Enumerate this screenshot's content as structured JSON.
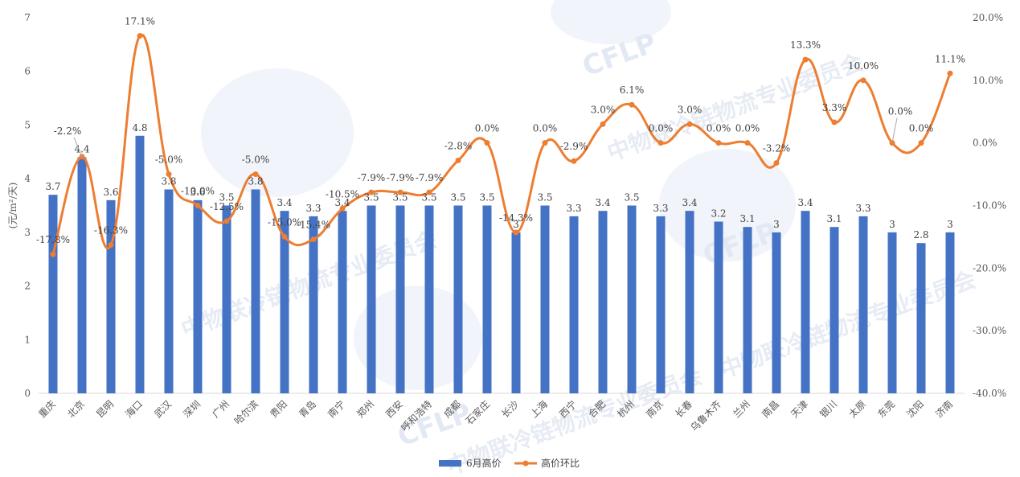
{
  "colors": {
    "bar": "#4472c4",
    "line": "#ed7d31",
    "grid": "#d9d9d9",
    "axis_text": "#595959",
    "watermark": "#c9d4ea"
  },
  "watermark": {
    "logo_text": "CFLP",
    "org_text": "中物联冷链物流专业委员会"
  },
  "chart_data": {
    "type": "bar",
    "title": "",
    "xlabel": "",
    "ylabel": "(元/m²/天)",
    "ylim": [
      0,
      7
    ],
    "y_ticks": [
      "0",
      "1",
      "2",
      "3",
      "4",
      "5",
      "6",
      "7"
    ],
    "y2lim": [
      -40,
      20
    ],
    "y2_ticks": [
      "-40.0%",
      "-30.0%",
      "-20.0%",
      "-10.0%",
      "0.0%",
      "10.0%",
      "20.0%"
    ],
    "categories": [
      "重庆",
      "北京",
      "昆明",
      "海口",
      "武汉",
      "深圳",
      "广州",
      "哈尔滨",
      "贵阳",
      "青岛",
      "南宁",
      "郑州",
      "西安",
      "呼和浩特",
      "成都",
      "石家庄",
      "长沙",
      "上海",
      "西宁",
      "合肥",
      "杭州",
      "南京",
      "长春",
      "乌鲁木齐",
      "兰州",
      "南昌",
      "天津",
      "银川",
      "太原",
      "东莞",
      "沈阳",
      "济南"
    ],
    "series": [
      {
        "name": "6月高价",
        "type": "bar",
        "axis": "left",
        "values": [
          3.7,
          4.4,
          3.6,
          4.8,
          3.8,
          3.6,
          3.5,
          3.8,
          3.4,
          3.3,
          3.4,
          3.5,
          3.5,
          3.5,
          3.5,
          3.5,
          3,
          3.5,
          3.3,
          3.4,
          3.5,
          3.3,
          3.4,
          3.2,
          3.1,
          3,
          3.4,
          3.1,
          3.3,
          3,
          2.8,
          3
        ],
        "labels": [
          "3.7",
          "4.4",
          "3.6",
          "4.8",
          "3.8",
          "3.6",
          "3.5",
          "3.8",
          "3.4",
          "3.3",
          "3.4",
          "3.5",
          "3.5",
          "3.5",
          "3.5",
          "3.5",
          "3",
          "3.5",
          "3.3",
          "3.4",
          "3.5",
          "3.3",
          "3.4",
          "3.2",
          "3.1",
          "3",
          "3.4",
          "3.1",
          "3.3",
          "3",
          "2.8",
          "3"
        ]
      },
      {
        "name": "高价环比",
        "type": "line",
        "axis": "right",
        "values": [
          -17.8,
          -2.2,
          -16.3,
          17.1,
          -5.0,
          -10.0,
          -12.5,
          -5.0,
          -15.0,
          -15.4,
          -10.5,
          -7.9,
          -7.9,
          -7.9,
          -2.8,
          0.0,
          -14.3,
          0.0,
          -2.9,
          3.0,
          6.1,
          0.0,
          3.0,
          0.0,
          0.0,
          -3.2,
          13.3,
          3.3,
          10.0,
          0.0,
          0.0,
          11.1
        ],
        "labels": [
          "-17.8%",
          "-2.2%",
          "-16.3%",
          "17.1%",
          "-5.0%",
          "-10.0%",
          "-12.5%",
          "-5.0%",
          "-15.0%",
          "-15.4%",
          "-10.5%",
          "-7.9%",
          "-7.9%",
          "-7.9%",
          "-2.8%",
          "0.0%",
          "-14.3%",
          "0.0%",
          "-2.9%",
          "3.0%",
          "6.1%",
          "0.0%",
          "3.0%",
          "0.0%",
          "0.0%",
          "-3.2%",
          "13.3%",
          "3.3%",
          "10.0%",
          "0.0%",
          "0.0%",
          "11.1%"
        ]
      }
    ],
    "legend": {
      "position": "bottom",
      "items": [
        "6月高价",
        "高价环比"
      ]
    },
    "grid": false
  }
}
